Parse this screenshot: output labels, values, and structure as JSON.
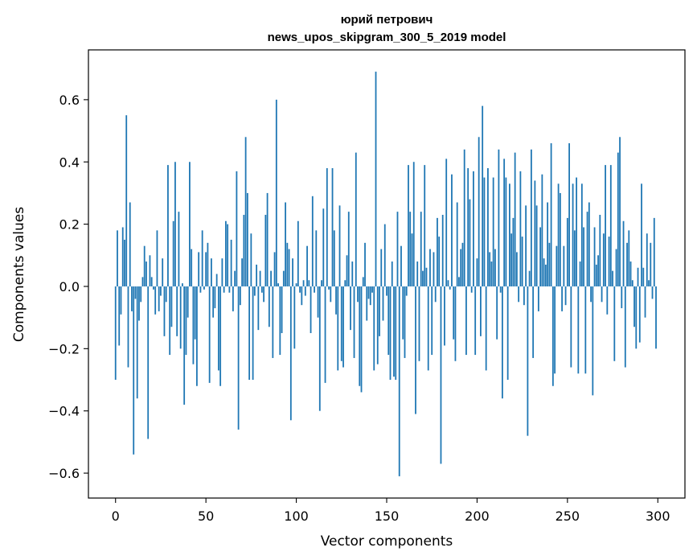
{
  "chart_data": {
    "type": "bar",
    "title": "юрий петрович",
    "subtitle": "news_upos_skipgram_300_5_2019 model",
    "xlabel": "Vector components",
    "ylabel": "Components values",
    "xlim": [
      -15,
      315
    ],
    "ylim": [
      -0.68,
      0.76
    ],
    "xticks": [
      0,
      50,
      100,
      150,
      200,
      250,
      300
    ],
    "xtick_labels": [
      "0",
      "50",
      "100",
      "150",
      "200",
      "250",
      "300"
    ],
    "yticks": [
      -0.6,
      -0.4,
      -0.2,
      0.0,
      0.2,
      0.4,
      0.6
    ],
    "ytick_labels": [
      "−0.6",
      "−0.4",
      "−0.2",
      "0.0",
      "0.2",
      "0.4",
      "0.6"
    ],
    "bar_color": "#1f77b4",
    "grid": false,
    "legend": "none",
    "x": [
      0,
      1,
      2,
      3,
      4,
      5,
      6,
      7,
      8,
      9,
      10,
      11,
      12,
      13,
      14,
      15,
      16,
      17,
      18,
      19,
      20,
      21,
      22,
      23,
      24,
      25,
      26,
      27,
      28,
      29,
      30,
      31,
      32,
      33,
      34,
      35,
      36,
      37,
      38,
      39,
      40,
      41,
      42,
      43,
      44,
      45,
      46,
      47,
      48,
      49,
      50,
      51,
      52,
      53,
      54,
      55,
      56,
      57,
      58,
      59,
      60,
      61,
      62,
      63,
      64,
      65,
      66,
      67,
      68,
      69,
      70,
      71,
      72,
      73,
      74,
      75,
      76,
      77,
      78,
      79,
      80,
      81,
      82,
      83,
      84,
      85,
      86,
      87,
      88,
      89,
      90,
      91,
      92,
      93,
      94,
      95,
      96,
      97,
      98,
      99,
      100,
      101,
      102,
      103,
      104,
      105,
      106,
      107,
      108,
      109,
      110,
      111,
      112,
      113,
      114,
      115,
      116,
      117,
      118,
      119,
      120,
      121,
      122,
      123,
      124,
      125,
      126,
      127,
      128,
      129,
      130,
      131,
      132,
      133,
      134,
      135,
      136,
      137,
      138,
      139,
      140,
      141,
      142,
      143,
      144,
      145,
      146,
      147,
      148,
      149,
      150,
      151,
      152,
      153,
      154,
      155,
      156,
      157,
      158,
      159,
      160,
      161,
      162,
      163,
      164,
      165,
      166,
      167,
      168,
      169,
      170,
      171,
      172,
      173,
      174,
      175,
      176,
      177,
      178,
      179,
      180,
      181,
      182,
      183,
      184,
      185,
      186,
      187,
      188,
      189,
      190,
      191,
      192,
      193,
      194,
      195,
      196,
      197,
      198,
      199,
      200,
      201,
      202,
      203,
      204,
      205,
      206,
      207,
      208,
      209,
      210,
      211,
      212,
      213,
      214,
      215,
      216,
      217,
      218,
      219,
      220,
      221,
      222,
      223,
      224,
      225,
      226,
      227,
      228,
      229,
      230,
      231,
      232,
      233,
      234,
      235,
      236,
      237,
      238,
      239,
      240,
      241,
      242,
      243,
      244,
      245,
      246,
      247,
      248,
      249,
      250,
      251,
      252,
      253,
      254,
      255,
      256,
      257,
      258,
      259,
      260,
      261,
      262,
      263,
      264,
      265,
      266,
      267,
      268,
      269,
      270,
      271,
      272,
      273,
      274,
      275,
      276,
      277,
      278,
      279,
      280,
      281,
      282,
      283,
      284,
      285,
      286,
      287,
      288,
      289,
      290,
      291,
      292,
      293,
      294,
      295,
      296,
      297,
      298,
      299
    ],
    "values": [
      -0.3,
      0.18,
      -0.19,
      -0.09,
      0.19,
      0.15,
      0.55,
      -0.26,
      0.27,
      -0.08,
      -0.54,
      -0.04,
      -0.36,
      -0.11,
      -0.05,
      0.03,
      0.13,
      0.08,
      -0.49,
      0.1,
      0.03,
      -0.01,
      -0.09,
      0.18,
      -0.08,
      -0.03,
      0.09,
      -0.16,
      -0.05,
      0.39,
      -0.22,
      -0.13,
      0.21,
      0.4,
      -0.16,
      0.24,
      -0.2,
      0.01,
      -0.38,
      -0.22,
      -0.1,
      0.4,
      0.12,
      -0.25,
      -0.17,
      -0.32,
      0.11,
      -0.02,
      0.18,
      -0.01,
      0.11,
      0.14,
      -0.31,
      0.09,
      -0.1,
      -0.07,
      0.04,
      -0.27,
      -0.32,
      0.09,
      -0.02,
      0.21,
      0.2,
      -0.02,
      0.15,
      -0.08,
      0.05,
      0.37,
      -0.46,
      -0.06,
      0.09,
      0.23,
      0.48,
      0.3,
      -0.3,
      0.17,
      -0.3,
      -0.03,
      0.07,
      -0.14,
      0.05,
      -0.02,
      -0.05,
      0.23,
      0.3,
      -0.13,
      0.05,
      -0.23,
      0.11,
      0.6,
      0.01,
      -0.22,
      -0.15,
      0.05,
      0.27,
      0.14,
      0.12,
      -0.43,
      0.09,
      -0.2,
      0.01,
      0.21,
      -0.02,
      -0.06,
      0.02,
      -0.03,
      0.13,
      0.02,
      -0.15,
      0.29,
      -0.02,
      0.18,
      -0.1,
      -0.4,
      0.02,
      0.25,
      -0.31,
      0.38,
      -0.01,
      -0.05,
      0.38,
      0.18,
      -0.09,
      -0.27,
      0.26,
      -0.24,
      -0.26,
      0.02,
      0.1,
      0.24,
      -0.14,
      0.08,
      -0.23,
      0.43,
      -0.05,
      -0.32,
      -0.34,
      0.03,
      0.14,
      -0.11,
      -0.04,
      -0.06,
      -0.02,
      -0.27,
      0.69,
      -0.25,
      -0.16,
      0.12,
      -0.11,
      0.2,
      -0.03,
      -0.22,
      -0.3,
      0.08,
      -0.29,
      -0.3,
      0.24,
      -0.61,
      0.13,
      -0.17,
      -0.23,
      -0.03,
      0.39,
      0.24,
      0.17,
      0.4,
      -0.41,
      0.08,
      -0.24,
      0.24,
      0.05,
      0.39,
      0.06,
      -0.27,
      0.12,
      -0.22,
      0.11,
      -0.05,
      0.22,
      0.16,
      -0.57,
      0.23,
      -0.19,
      0.41,
      0.02,
      -0.01,
      0.36,
      -0.17,
      -0.24,
      0.27,
      0.03,
      0.12,
      0.14,
      0.44,
      -0.22,
      0.38,
      0.28,
      -0.02,
      0.37,
      -0.22,
      0.09,
      0.48,
      -0.16,
      0.58,
      0.35,
      -0.27,
      0.38,
      0.11,
      0.08,
      0.35,
      0.12,
      -0.17,
      0.44,
      -0.02,
      -0.36,
      0.41,
      0.35,
      -0.3,
      0.33,
      0.17,
      0.22,
      0.43,
      0.11,
      -0.05,
      0.37,
      0.16,
      -0.06,
      0.26,
      -0.48,
      0.05,
      0.44,
      -0.23,
      0.34,
      0.26,
      -0.08,
      0.19,
      0.36,
      0.09,
      0.07,
      0.27,
      0.14,
      0.46,
      -0.32,
      -0.28,
      0.13,
      0.33,
      0.3,
      -0.08,
      0.13,
      -0.06,
      0.22,
      0.46,
      -0.26,
      0.33,
      0.18,
      0.35,
      -0.28,
      0.08,
      0.33,
      0.19,
      -0.28,
      0.24,
      0.27,
      -0.05,
      -0.35,
      0.19,
      0.07,
      0.1,
      0.23,
      -0.05,
      0.17,
      0.39,
      -0.09,
      0.16,
      0.39,
      0.05,
      -0.24,
      0.12,
      0.43,
      0.48,
      -0.07,
      0.21,
      -0.26,
      0.14,
      0.18,
      0.08,
      0.02,
      -0.13,
      -0.2,
      0.06,
      -0.18,
      0.33,
      0.06,
      -0.1,
      0.17,
      0.02,
      0.14,
      -0.04,
      0.22,
      -0.2
    ]
  }
}
